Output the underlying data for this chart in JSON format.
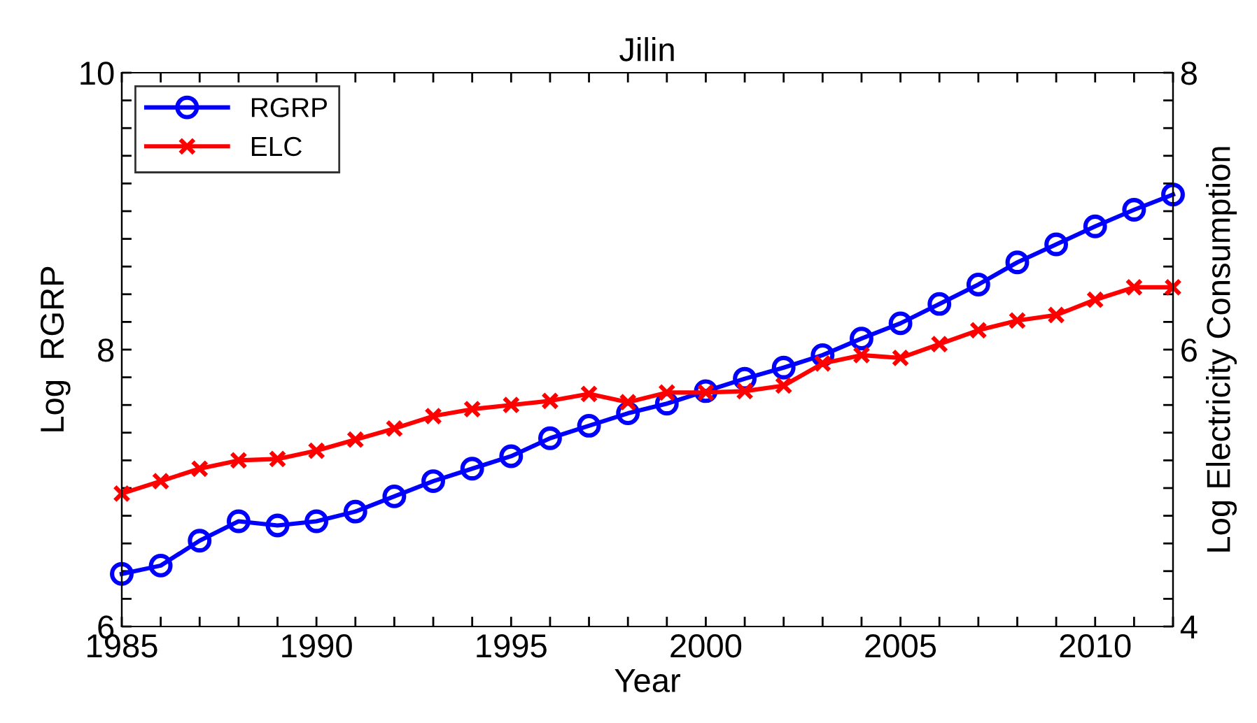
{
  "chart_data": {
    "type": "line",
    "title": "Jilin",
    "xlabel": "Year",
    "ylabel": "Log  RGRP",
    "y2label": "Log Electricity Consumption",
    "x": [
      1985,
      1986,
      1987,
      1988,
      1989,
      1990,
      1991,
      1992,
      1993,
      1994,
      1995,
      1996,
      1997,
      1998,
      1999,
      2000,
      2001,
      2002,
      2003,
      2004,
      2005,
      2006,
      2007,
      2008,
      2009,
      2010,
      2011,
      2012
    ],
    "series": [
      {
        "name": "RGRP",
        "color": "#0000ff",
        "marker": "circle",
        "values": [
          6.38,
          6.44,
          6.62,
          6.76,
          6.73,
          6.76,
          6.83,
          6.94,
          7.05,
          7.14,
          7.23,
          7.36,
          7.45,
          7.54,
          7.61,
          7.7,
          7.79,
          7.87,
          7.96,
          8.08,
          8.19,
          8.33,
          8.47,
          8.63,
          8.76,
          8.89,
          9.01,
          9.12
        ]
      },
      {
        "name": "ELC",
        "color": "#ff0000",
        "marker": "cross",
        "axis": "y2",
        "values": [
          4.96,
          5.05,
          5.14,
          5.2,
          5.21,
          5.27,
          5.35,
          5.43,
          5.52,
          5.57,
          5.6,
          5.63,
          5.68,
          5.62,
          5.69,
          5.69,
          5.7,
          5.74,
          5.9,
          5.96,
          5.94,
          6.04,
          6.14,
          6.21,
          6.25,
          6.36,
          6.45,
          6.45
        ]
      }
    ],
    "xlim": [
      1985,
      2012
    ],
    "xticks": [
      1985,
      {
        "value": 1986,
        "label": null
      },
      {
        "value": 1987,
        "label": null
      },
      {
        "value": 1988,
        "label": null
      },
      {
        "value": 1989,
        "label": null
      },
      1990,
      {
        "value": 1991,
        "label": null
      },
      {
        "value": 1992,
        "label": null
      },
      {
        "value": 1993,
        "label": null
      },
      {
        "value": 1994,
        "label": null
      },
      1995,
      {
        "value": 1996,
        "label": null
      },
      {
        "value": 1997,
        "label": null
      },
      {
        "value": 1998,
        "label": null
      },
      {
        "value": 1999,
        "label": null
      },
      2000,
      {
        "value": 2001,
        "label": null
      },
      {
        "value": 2002,
        "label": null
      },
      {
        "value": 2003,
        "label": null
      },
      {
        "value": 2004,
        "label": null
      },
      2005,
      {
        "value": 2006,
        "label": null
      },
      {
        "value": 2007,
        "label": null
      },
      {
        "value": 2008,
        "label": null
      },
      {
        "value": 2009,
        "label": null
      },
      2010,
      {
        "value": 2011,
        "label": null
      },
      {
        "value": 2012,
        "label": null
      }
    ],
    "ylim": [
      6,
      10
    ],
    "yticks": [
      6,
      {
        "value": 6.2,
        "label": null
      },
      {
        "value": 6.4,
        "label": null
      },
      {
        "value": 6.6,
        "label": null
      },
      {
        "value": 6.8,
        "label": null
      },
      {
        "value": 7,
        "label": null
      },
      {
        "value": 7.2,
        "label": null
      },
      {
        "value": 7.4,
        "label": null
      },
      {
        "value": 7.6,
        "label": null
      },
      {
        "value": 7.8,
        "label": null
      },
      8,
      {
        "value": 8.2,
        "label": null
      },
      {
        "value": 8.4,
        "label": null
      },
      {
        "value": 8.6,
        "label": null
      },
      {
        "value": 8.8,
        "label": null
      },
      {
        "value": 9,
        "label": null
      },
      {
        "value": 9.2,
        "label": null
      },
      {
        "value": 9.4,
        "label": null
      },
      {
        "value": 9.6,
        "label": null
      },
      {
        "value": 9.8,
        "label": null
      },
      10
    ],
    "y2lim": [
      4,
      8
    ],
    "y2ticks": [
      4,
      {
        "value": 4.2,
        "label": null
      },
      {
        "value": 4.4,
        "label": null
      },
      {
        "value": 4.6,
        "label": null
      },
      {
        "value": 4.8,
        "label": null
      },
      {
        "value": 5,
        "label": null
      },
      {
        "value": 5.2,
        "label": null
      },
      {
        "value": 5.4,
        "label": null
      },
      {
        "value": 5.6,
        "label": null
      },
      {
        "value": 5.8,
        "label": null
      },
      6,
      {
        "value": 6.2,
        "label": null
      },
      {
        "value": 6.4,
        "label": null
      },
      {
        "value": 6.6,
        "label": null
      },
      {
        "value": 6.8,
        "label": null
      },
      {
        "value": 7,
        "label": null
      },
      {
        "value": 7.2,
        "label": null
      },
      {
        "value": 7.4,
        "label": null
      },
      {
        "value": 7.6,
        "label": null
      },
      {
        "value": 7.8,
        "label": null
      },
      8
    ],
    "legend": "top left",
    "grid": false,
    "line_style": "solid"
  }
}
